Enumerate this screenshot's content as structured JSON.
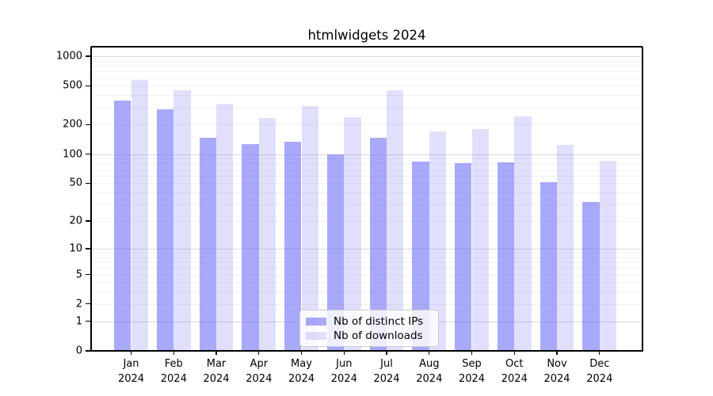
{
  "chart_data": {
    "type": "bar",
    "title": "htmlwidgets 2024",
    "scale": "log1p",
    "grid": true,
    "legend_position": "lower center inside plot",
    "categories": [
      "Jan",
      "Feb",
      "Mar",
      "Apr",
      "May",
      "Jun",
      "Jul",
      "Aug",
      "Sep",
      "Oct",
      "Nov",
      "Dec"
    ],
    "category_year": "2024",
    "y_ticks": [
      1000,
      500,
      200,
      100,
      50,
      20,
      10,
      5,
      2,
      1,
      0
    ],
    "ylim": [
      0,
      1200
    ],
    "xlabel": "",
    "ylabel": "",
    "series": [
      {
        "name": "Nb of distinct IPs",
        "color": "#6363f5",
        "fill": "rgba(99,99,245,0.55)",
        "values": [
          350,
          290,
          148,
          127,
          135,
          100,
          148,
          84,
          81,
          82,
          51,
          32
        ]
      },
      {
        "name": "Nb of downloads",
        "color": "#6363f5",
        "fill": "rgba(99,99,245,0.20)",
        "values": [
          575,
          450,
          330,
          235,
          310,
          239,
          450,
          170,
          181,
          243,
          124,
          86
        ]
      }
    ]
  }
}
